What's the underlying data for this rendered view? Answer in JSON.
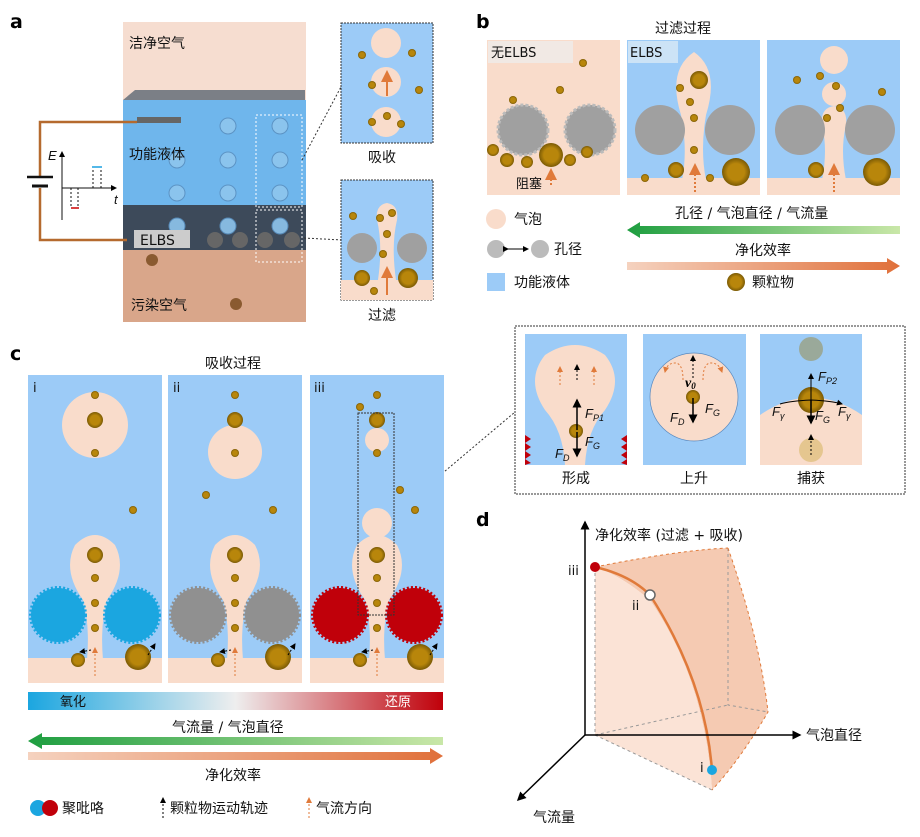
{
  "panel_labels": {
    "a": "a",
    "b": "b",
    "c": "c",
    "d": "d"
  },
  "panel_a": {
    "clean_air": "洁净空气",
    "functional_liquid": "功能液体",
    "elbs": "ELBS",
    "polluted_air": "污染空气",
    "absorb": "吸收",
    "filter": "过滤",
    "axis_e": "E",
    "axis_t": "t"
  },
  "panel_b": {
    "title": "过滤过程",
    "no_elbs": "无ELBS",
    "elbs": "ELBS",
    "blocked": "阻塞",
    "legend_bubble": "气泡",
    "legend_pore": "孔径",
    "legend_liquid": "功能液体",
    "legend_particle": "颗粒物",
    "arrow1_label": "孔径 / 气泡直径 / 气流量",
    "arrow2_label": "净化效率"
  },
  "panel_c": {
    "title": "吸收过程",
    "sub": [
      "i",
      "ii",
      "iii"
    ],
    "oxidized": "氧化",
    "reduced": "还原",
    "arrow1_label": "气流量 / 气泡直径",
    "arrow2_label": "净化效率",
    "legend_ppy": "聚吡咯",
    "legend_traj": "颗粒物运动轨迹",
    "legend_flow": "气流方向"
  },
  "inset": {
    "formation": "形成",
    "rise": "上升",
    "capture": "捕获",
    "F": "F",
    "P1": "P1",
    "P2": "P2",
    "G": "G",
    "D": "D",
    "gamma": "γ",
    "v0": "v",
    "v0_sub": "0"
  },
  "panel_d": {
    "y_axis": "净化效率 (过滤 + 吸收)",
    "x_axis": "气泡直径",
    "z_axis": "气流量",
    "points": [
      "iii",
      "ii",
      "i"
    ]
  },
  "colors": {
    "liquid": "#9ccbf7",
    "bubble": "#f9dccb",
    "particle": "#b8860b",
    "pore_gray": "#a0a0a0",
    "ppy_blue": "#1ba6e0",
    "ppy_red": "#c0000a",
    "green": "#2aa84a",
    "orange": "#e07a3a"
  }
}
